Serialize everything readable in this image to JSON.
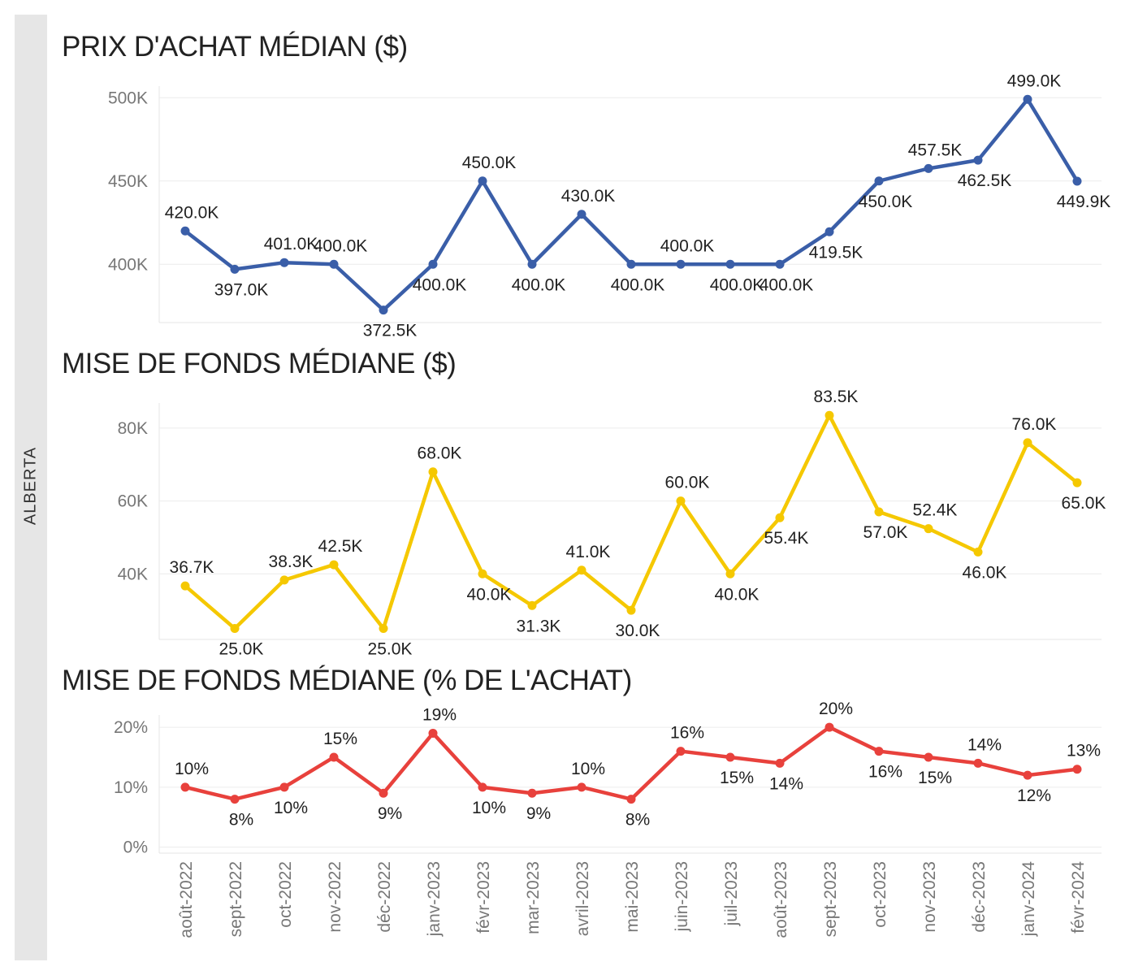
{
  "region_label": "ALBERTA",
  "months": [
    "août-2022",
    "sept-2022",
    "oct-2022",
    "nov-2022",
    "déc-2022",
    "janv-2023",
    "févr-2023",
    "mar-2023",
    "avril-2023",
    "mai-2023",
    "juin-2023",
    "juil-2023",
    "août-2023",
    "sept-2023",
    "oct-2023",
    "nov-2023",
    "déc-2023",
    "janv-2024",
    "févr-2024"
  ],
  "chart_data": [
    {
      "type": "line",
      "title": "PRIX D'ACHAT MÉDIAN ($)",
      "color": "#3a5ea8",
      "ylim": [
        365,
        505
      ],
      "yticks": [
        400,
        450,
        500
      ],
      "ytick_labels": [
        "400K",
        "450K",
        "500K"
      ],
      "values": [
        420.0,
        397.0,
        401.0,
        400.0,
        372.5,
        400.0,
        450.0,
        400.0,
        430.0,
        400.0,
        400.0,
        400.0,
        400.0,
        419.5,
        450.0,
        457.5,
        462.5,
        499.0,
        449.9
      ],
      "labels": [
        "420.0K",
        "397.0K",
        "401.0K",
        "400.0K",
        "372.5K",
        "400.0K",
        "450.0K",
        "400.0K",
        "430.0K",
        "400.0K",
        "400.0K",
        "400.0K",
        "400.0K",
        "419.5K",
        "450.0K",
        "457.5K",
        "462.5K",
        "499.0K",
        "449.9K"
      ],
      "label_pos": [
        "above",
        "below",
        "above",
        "above",
        "below",
        "below",
        "above",
        "below",
        "above",
        "below",
        "above",
        "below",
        "below",
        "below",
        "below",
        "above",
        "below",
        "above",
        "below"
      ]
    },
    {
      "type": "line",
      "title": "MISE DE FONDS MÉDIANE ($)",
      "color": "#f5c800",
      "ylim": [
        22,
        86
      ],
      "yticks": [
        40,
        60,
        80
      ],
      "ytick_labels": [
        "40K",
        "60K",
        "80K"
      ],
      "values": [
        36.7,
        25.0,
        38.3,
        42.5,
        25.0,
        68.0,
        40.0,
        31.3,
        41.0,
        30.0,
        60.0,
        40.0,
        55.4,
        83.5,
        57.0,
        52.4,
        46.0,
        76.0,
        65.0
      ],
      "labels": [
        "36.7K",
        "25.0K",
        "38.3K",
        "42.5K",
        "25.0K",
        "68.0K",
        "40.0K",
        "31.3K",
        "41.0K",
        "30.0K",
        "60.0K",
        "40.0K",
        "55.4K",
        "83.5K",
        "57.0K",
        "52.4K",
        "46.0K",
        "76.0K",
        "65.0K"
      ],
      "label_pos": [
        "above",
        "below",
        "above",
        "above",
        "below",
        "above",
        "below",
        "below",
        "above",
        "below",
        "above",
        "below",
        "below",
        "above",
        "below",
        "above",
        "below",
        "above",
        "below"
      ]
    },
    {
      "type": "line",
      "title": "MISE DE FONDS MÉDIANE (% DE L'ACHAT)",
      "color": "#e8413c",
      "ylim": [
        -1,
        21.5
      ],
      "yticks": [
        0,
        10,
        20
      ],
      "ytick_labels": [
        "0%",
        "10%",
        "20%"
      ],
      "values": [
        10,
        8,
        10,
        15,
        9,
        19,
        10,
        9,
        10,
        8,
        16,
        15,
        14,
        20,
        16,
        15,
        14,
        12,
        13
      ],
      "labels": [
        "10%",
        "8%",
        "10%",
        "15%",
        "9%",
        "19%",
        "10%",
        "9%",
        "10%",
        "8%",
        "16%",
        "15%",
        "14%",
        "20%",
        "16%",
        "15%",
        "14%",
        "12%",
        "13%"
      ],
      "label_pos": [
        "above",
        "below",
        "below",
        "above",
        "below",
        "above",
        "below",
        "below",
        "above",
        "below",
        "above",
        "below",
        "below",
        "above",
        "below",
        "below",
        "above",
        "below",
        "above"
      ]
    }
  ]
}
